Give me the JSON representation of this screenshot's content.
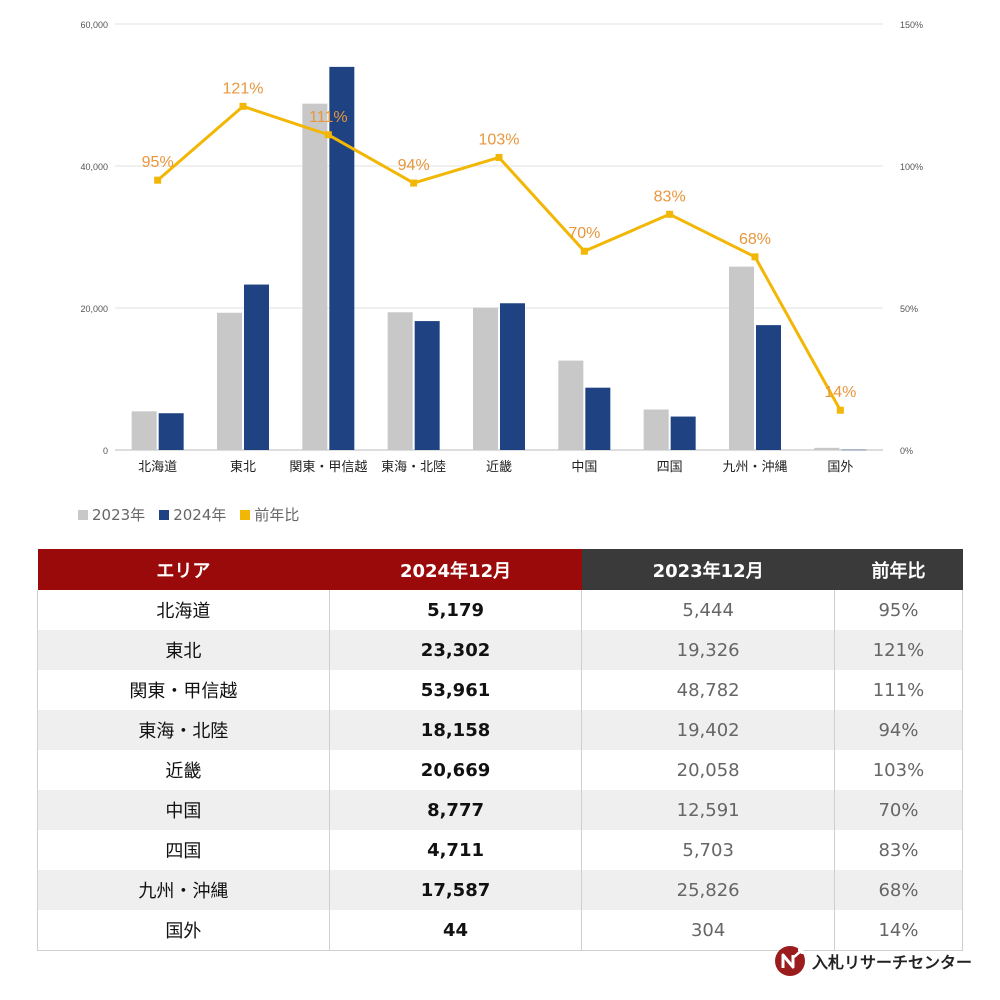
{
  "chart_data": {
    "type": "bar",
    "categories": [
      "北海道",
      "東北",
      "関東・甲信越",
      "東海・北陸",
      "近畿",
      "中国",
      "四国",
      "九州・沖縄",
      "国外"
    ],
    "series": [
      {
        "name": "2023年",
        "type": "bar",
        "color": "#c8c8c8",
        "values": [
          5444,
          19326,
          48782,
          19402,
          20058,
          12591,
          5703,
          25826,
          304
        ]
      },
      {
        "name": "2024年",
        "type": "bar",
        "color": "#1f4283",
        "values": [
          5179,
          23302,
          53961,
          18158,
          20669,
          8777,
          4711,
          17587,
          44
        ]
      },
      {
        "name": "前年比",
        "type": "line",
        "axis": "right",
        "color": "#f2b705",
        "values": [
          95,
          121,
          111,
          94,
          103,
          70,
          83,
          68,
          14
        ],
        "labels": [
          "95%",
          "121%",
          "111%",
          "94%",
          "103%",
          "70%",
          "83%",
          "68%",
          "14%"
        ]
      }
    ],
    "ylim": [
      0,
      60000
    ],
    "y_ticks": [
      "0",
      "20,000",
      "40,000",
      "60,000"
    ],
    "y2lim": [
      0,
      150
    ],
    "y2_ticks": [
      "0%",
      "50%",
      "100%",
      "150%"
    ],
    "grid": true,
    "legend_position": "bottom-left",
    "label_color": "#e8963c"
  },
  "legend": {
    "items": [
      {
        "label": "2023年",
        "color": "#c8c8c8"
      },
      {
        "label": "2024年",
        "color": "#1f4283"
      },
      {
        "label": "前年比",
        "color": "#f2b705"
      }
    ]
  },
  "table": {
    "headers": {
      "area": "エリア",
      "v2024": "2024年12月",
      "v2023": "2023年12月",
      "ratio": "前年比"
    },
    "rows": [
      {
        "area": "北海道",
        "v2024": "5,179",
        "v2023": "5,444",
        "ratio": "95%"
      },
      {
        "area": "東北",
        "v2024": "23,302",
        "v2023": "19,326",
        "ratio": "121%"
      },
      {
        "area": "関東・甲信越",
        "v2024": "53,961",
        "v2023": "48,782",
        "ratio": "111%"
      },
      {
        "area": "東海・北陸",
        "v2024": "18,158",
        "v2023": "19,402",
        "ratio": "94%"
      },
      {
        "area": "近畿",
        "v2024": "20,669",
        "v2023": "20,058",
        "ratio": "103%"
      },
      {
        "area": "中国",
        "v2024": "8,777",
        "v2023": "12,591",
        "ratio": "70%"
      },
      {
        "area": "四国",
        "v2024": "4,711",
        "v2023": "5,703",
        "ratio": "83%"
      },
      {
        "area": "九州・沖縄",
        "v2024": "17,587",
        "v2023": "25,826",
        "ratio": "68%"
      },
      {
        "area": "国外",
        "v2024": "44",
        "v2023": "304",
        "ratio": "14%"
      }
    ]
  },
  "logo": {
    "text": "入札リサーチセンター",
    "mark_color": "#9b1c1c"
  }
}
